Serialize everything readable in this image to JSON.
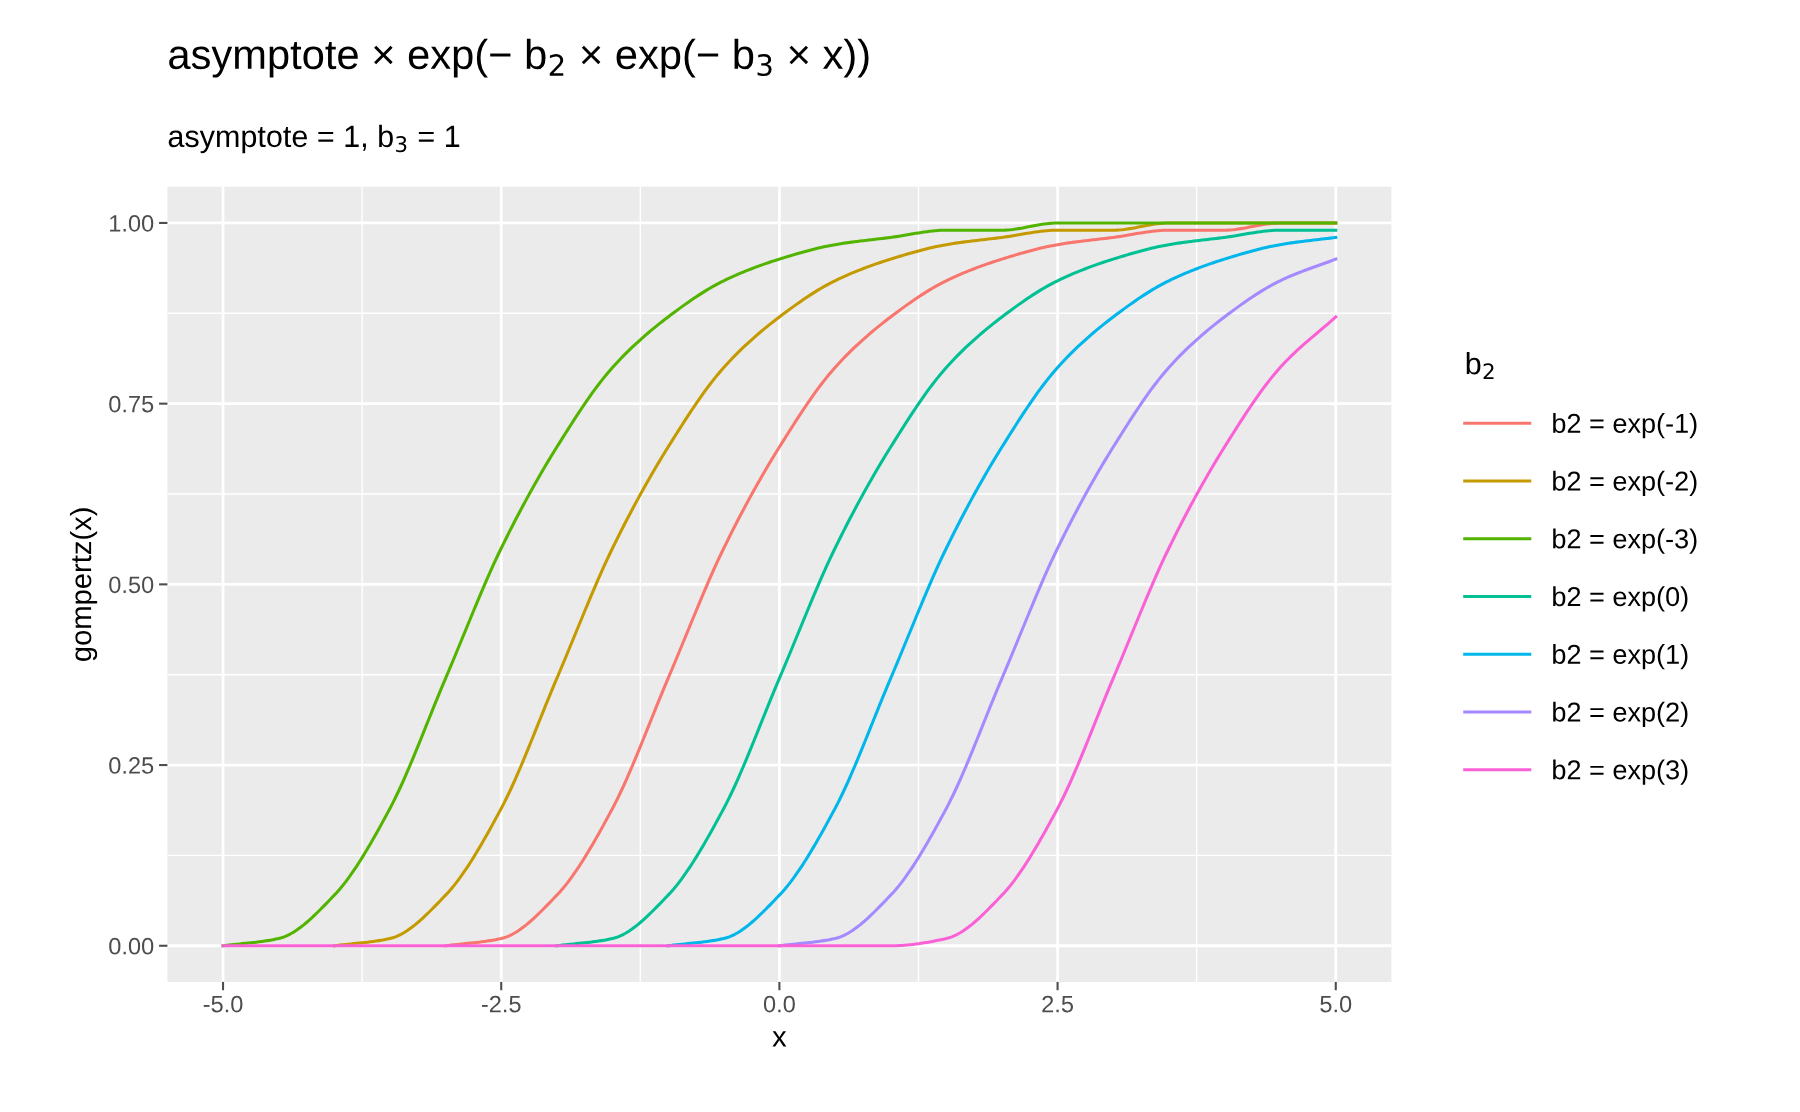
{
  "chart_data": {
    "type": "line",
    "title": "asymptote × exp(− b$_{2}$ × exp(− b$_{3}$ × x))",
    "subtitle": "asymptote = 1, b$_{3}$ = 1",
    "xlabel": "x",
    "ylabel": "gompertz(x)",
    "legend_title": "b$_{2}$",
    "x": [
      -5,
      -4.5,
      -4,
      -3.5,
      -3,
      -2.5,
      -2,
      -1.5,
      -1,
      -0.5,
      0,
      0.5,
      1,
      1.5,
      2,
      2.5,
      3,
      3.5,
      4,
      4.5,
      5
    ],
    "series": [
      {
        "name": "b2 = exp(-1)",
        "color": "#f8766d",
        "values": [
          null,
          null,
          null,
          null,
          0,
          0.01,
          0.07,
          0.19,
          0.37,
          0.55,
          0.69,
          0.8,
          0.87,
          0.92,
          0.95,
          0.97,
          0.98,
          0.99,
          0.99,
          1,
          1
        ]
      },
      {
        "name": "b2 = exp(-2)",
        "color": "#c49a00",
        "values": [
          null,
          null,
          0,
          0.01,
          0.07,
          0.19,
          0.37,
          0.55,
          0.69,
          0.8,
          0.87,
          0.92,
          0.95,
          0.97,
          0.98,
          0.99,
          0.99,
          1,
          1,
          1,
          1
        ]
      },
      {
        "name": "b2 = exp(-3)",
        "color": "#53b400",
        "values": [
          0,
          0.01,
          0.07,
          0.19,
          0.37,
          0.55,
          0.69,
          0.8,
          0.87,
          0.92,
          0.95,
          0.97,
          0.98,
          0.99,
          0.99,
          1,
          1,
          1,
          1,
          1,
          1
        ]
      },
      {
        "name": "b2 = exp(0)",
        "color": "#00c094",
        "values": [
          null,
          null,
          null,
          null,
          null,
          null,
          0,
          0.01,
          0.07,
          0.19,
          0.37,
          0.55,
          0.69,
          0.8,
          0.87,
          0.92,
          0.95,
          0.97,
          0.98,
          0.99,
          0.99
        ]
      },
      {
        "name": "b2 = exp(1)",
        "color": "#00b6eb",
        "values": [
          null,
          null,
          null,
          null,
          null,
          null,
          null,
          null,
          0,
          0.01,
          0.07,
          0.19,
          0.37,
          0.55,
          0.69,
          0.8,
          0.87,
          0.92,
          0.95,
          0.97,
          0.98
        ]
      },
      {
        "name": "b2 = exp(2)",
        "color": "#a58aff",
        "values": [
          null,
          null,
          null,
          null,
          null,
          null,
          null,
          null,
          null,
          null,
          0,
          0.01,
          0.07,
          0.19,
          0.37,
          0.55,
          0.69,
          0.8,
          0.87,
          0.92,
          0.95
        ]
      },
      {
        "name": "b2 = exp(3)",
        "color": "#fb61d7",
        "values": [
          0,
          0,
          0,
          0,
          0,
          0,
          0,
          0,
          0,
          0,
          0,
          0,
          0,
          0.01,
          0.07,
          0.19,
          0.37,
          0.55,
          0.69,
          0.8,
          0.87
        ]
      }
    ],
    "xlim": [
      -5.5,
      5.5
    ],
    "ylim": [
      -0.05,
      1.05
    ],
    "xticks": [
      {
        "value": -5,
        "label": "-5.0"
      },
      {
        "value": -2.5,
        "label": "-2.5"
      },
      {
        "value": 0,
        "label": "0.0"
      },
      {
        "value": 2.5,
        "label": "2.5"
      },
      {
        "value": 5,
        "label": "5.0"
      }
    ],
    "yticks": [
      {
        "value": 0,
        "label": "0.00"
      },
      {
        "value": 0.25,
        "label": "0.25"
      },
      {
        "value": 0.5,
        "label": "0.50"
      },
      {
        "value": 0.75,
        "label": "0.75"
      },
      {
        "value": 1,
        "label": "1.00"
      }
    ],
    "grid": true,
    "legend": "right",
    "marker": "none",
    "line_style": "solid"
  }
}
